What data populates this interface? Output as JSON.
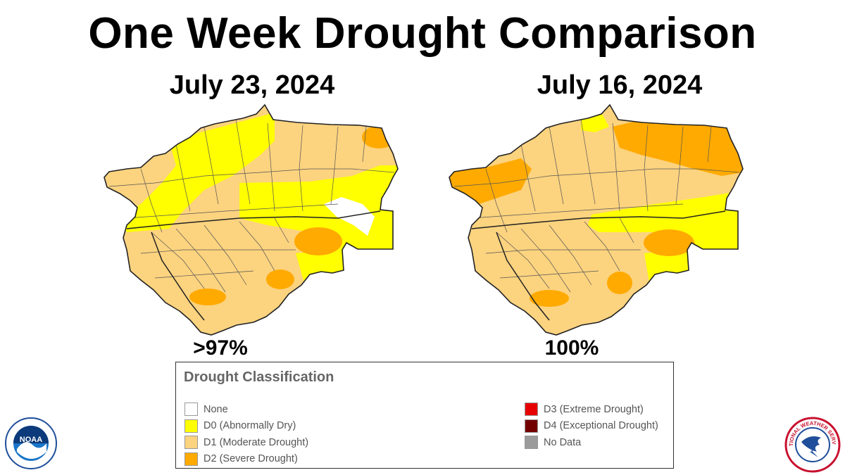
{
  "title": "One Week Drought Comparison",
  "maps": [
    {
      "date": "July 23, 2024",
      "percent": ">97%"
    },
    {
      "date": "July 16, 2024",
      "percent": "100%"
    }
  ],
  "legend": {
    "title": "Drought Classification",
    "items": [
      {
        "label": "None",
        "color": "#ffffff"
      },
      {
        "label": "D0 (Abnormally Dry)",
        "color": "#ffff00"
      },
      {
        "label": "D1 (Moderate Drought)",
        "color": "#fcd37f"
      },
      {
        "label": "D2 (Severe Drought)",
        "color": "#ffaa00"
      },
      {
        "label": "D3 (Extreme Drought)",
        "color": "#e60000"
      },
      {
        "label": "D4 (Exceptional Drought)",
        "color": "#730000"
      },
      {
        "label": "No Data",
        "color": "#9b9b9b"
      }
    ]
  },
  "logos": {
    "noaa": "NOAA",
    "nws": "NATIONAL WEATHER SERVICE"
  }
}
